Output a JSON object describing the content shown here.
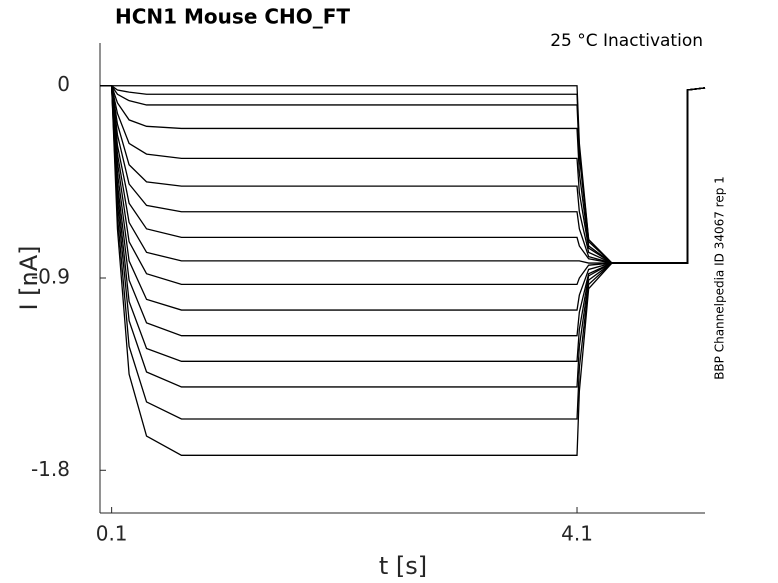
{
  "chart_data": {
    "type": "line",
    "title": "HCN1  Mouse  CHO_FT",
    "annotation": "25 °C  Inactivation",
    "side_note": "BBP Channelpedia ID 34067 rep 1",
    "x_label": "t [s]",
    "y_label": "I [nA]",
    "xlim": [
      0,
      5.2
    ],
    "ylim": [
      -2.0,
      0.2
    ],
    "xticks": [
      0.1,
      4.1
    ],
    "yticks": [
      0,
      -0.9,
      -1.8
    ],
    "color": "#000000",
    "x": [
      0,
      0.1,
      0.15,
      0.25,
      0.4,
      0.7,
      4.1,
      4.12,
      4.2,
      4.4,
      5.05,
      5.05,
      5.2
    ],
    "series": [
      {
        "values": [
          0,
          0,
          0,
          0,
          0,
          0,
          0,
          -0.27,
          -0.72,
          -0.83,
          -0.83,
          -0.02,
          -0.01
        ]
      },
      {
        "values": [
          0,
          0,
          -0.02,
          -0.03,
          -0.04,
          -0.04,
          -0.04,
          -0.3,
          -0.72,
          -0.83,
          -0.83,
          -0.02,
          -0.01
        ]
      },
      {
        "values": [
          0,
          0,
          -0.04,
          -0.07,
          -0.09,
          -0.09,
          -0.09,
          -0.33,
          -0.73,
          -0.83,
          -0.83,
          -0.02,
          -0.01
        ]
      },
      {
        "values": [
          0,
          0,
          -0.08,
          -0.16,
          -0.19,
          -0.2,
          -0.2,
          -0.41,
          -0.75,
          -0.83,
          -0.83,
          -0.02,
          -0.01
        ]
      },
      {
        "values": [
          0,
          0,
          -0.13,
          -0.27,
          -0.32,
          -0.34,
          -0.34,
          -0.5,
          -0.76,
          -0.83,
          -0.83,
          -0.02,
          -0.01
        ]
      },
      {
        "values": [
          0,
          0,
          -0.18,
          -0.37,
          -0.45,
          -0.47,
          -0.47,
          -0.59,
          -0.78,
          -0.83,
          -0.83,
          -0.02,
          -0.01
        ]
      },
      {
        "values": [
          0,
          0,
          -0.23,
          -0.46,
          -0.56,
          -0.59,
          -0.59,
          -0.67,
          -0.8,
          -0.83,
          -0.83,
          -0.02,
          -0.01
        ]
      },
      {
        "values": [
          0,
          0,
          -0.28,
          -0.55,
          -0.67,
          -0.71,
          -0.71,
          -0.75,
          -0.81,
          -0.83,
          -0.83,
          -0.02,
          -0.01
        ]
      },
      {
        "values": [
          0,
          0,
          -0.32,
          -0.64,
          -0.78,
          -0.82,
          -0.82,
          -0.82,
          -0.83,
          -0.83,
          -0.83,
          -0.02,
          -0.01
        ]
      },
      {
        "values": [
          0,
          0,
          -0.36,
          -0.73,
          -0.88,
          -0.93,
          -0.93,
          -0.9,
          -0.84,
          -0.83,
          -0.83,
          -0.02,
          -0.01
        ]
      },
      {
        "values": [
          0,
          0,
          -0.41,
          -0.82,
          -1.0,
          -1.05,
          -1.05,
          -0.98,
          -0.86,
          -0.83,
          -0.83,
          -0.02,
          -0.01
        ]
      },
      {
        "values": [
          0,
          0,
          -0.46,
          -0.91,
          -1.11,
          -1.17,
          -1.17,
          -1.06,
          -0.88,
          -0.83,
          -0.83,
          -0.02,
          -0.01
        ]
      },
      {
        "values": [
          0,
          0,
          -0.5,
          -1.01,
          -1.23,
          -1.29,
          -1.29,
          -1.14,
          -0.89,
          -0.83,
          -0.83,
          -0.02,
          -0.01
        ]
      },
      {
        "values": [
          0,
          0,
          -0.55,
          -1.1,
          -1.34,
          -1.41,
          -1.41,
          -1.22,
          -0.91,
          -0.83,
          -0.83,
          -0.02,
          -0.01
        ]
      },
      {
        "values": [
          0,
          0,
          -0.61,
          -1.22,
          -1.48,
          -1.56,
          -1.56,
          -1.32,
          -0.93,
          -0.83,
          -0.83,
          -0.02,
          -0.01
        ]
      },
      {
        "values": [
          0,
          0,
          -0.67,
          -1.35,
          -1.64,
          -1.73,
          -1.73,
          -1.43,
          -0.95,
          -0.83,
          -0.83,
          -0.02,
          -0.01
        ]
      }
    ]
  }
}
